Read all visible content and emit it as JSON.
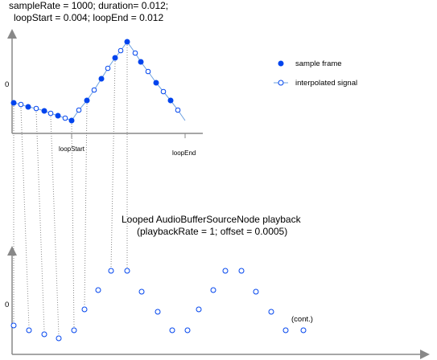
{
  "header": {
    "line1": "sampleRate = 1000; duration= 0.012;",
    "line2": "loopStart = 0.004; loopEnd = 0.012"
  },
  "top_plot": {
    "zero_label": "0",
    "loop_start_label": "loopStart",
    "loop_end_label": "loopEnd"
  },
  "legend": {
    "sample_frame": "sample frame",
    "interpolated": "interpolated signal"
  },
  "bottom_plot": {
    "title_line1": "Looped AudioBufferSourceNode playback",
    "title_line2": "(playbackRate = 1; offset = 0.0005)",
    "zero_label": "0",
    "continued": "(cont.)"
  }
}
